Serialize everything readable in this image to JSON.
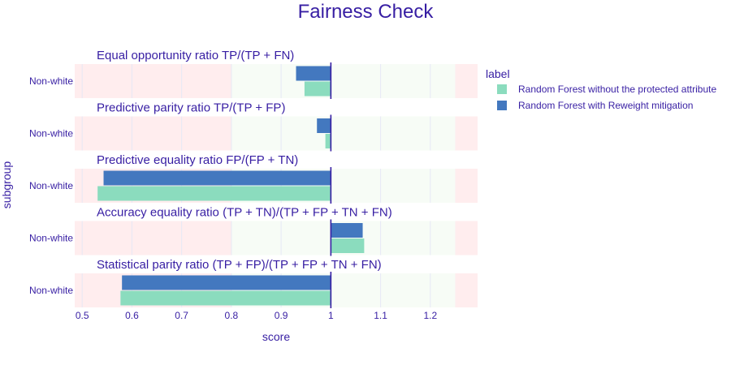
{
  "chart_data": {
    "type": "bar",
    "orientation": "horizontal",
    "title": "Fairness Check",
    "xlabel": "score",
    "ylabel": "subgroup",
    "xlim": [
      0.485,
      1.295
    ],
    "xticks": [
      0.5,
      0.6,
      0.7,
      0.8,
      0.9,
      1,
      1.1,
      1.2
    ],
    "fair_range": [
      0.8,
      1.25
    ],
    "reference_line": 1,
    "background_colors": {
      "unfair": "#ffedee",
      "fair": "#f7fcf6"
    },
    "legend": {
      "title": "label",
      "position": "right"
    },
    "series": [
      {
        "name": "Random Forest without the protected attribute",
        "color": "#8bdcbe"
      },
      {
        "name": "Random Forest with Reweight mitigation",
        "color": "#4378bf"
      }
    ],
    "panels": [
      {
        "metric": "Equal opportunity ratio",
        "formula": "TP/(TP + FN)",
        "category": "Non-white",
        "values": {
          "Random Forest without the protected attribute": 0.947,
          "Random Forest with Reweight mitigation": 0.93
        }
      },
      {
        "metric": "Predictive parity ratio",
        "formula": "TP/(TP + FP)",
        "category": "Non-white",
        "values": {
          "Random Forest without the protected attribute": 0.989,
          "Random Forest with Reweight mitigation": 0.972
        }
      },
      {
        "metric": "Predictive equality ratio",
        "formula": "FP/(FP + TN)",
        "category": "Non-white",
        "values": {
          "Random Forest without the protected attribute": 0.531,
          "Random Forest with Reweight mitigation": 0.543
        }
      },
      {
        "metric": "Accuracy equality ratio",
        "formula": "(TP + TN)/(TP + FP + TN + FN)",
        "category": "Non-white",
        "values": {
          "Random Forest without the protected attribute": 1.067,
          "Random Forest with Reweight mitigation": 1.064
        }
      },
      {
        "metric": "Statistical parity ratio",
        "formula": "(TP + FP)/(TP + FP + TN + FN)",
        "category": "Non-white",
        "values": {
          "Random Forest without the protected attribute": 0.577,
          "Random Forest with Reweight mitigation": 0.58
        }
      }
    ]
  }
}
